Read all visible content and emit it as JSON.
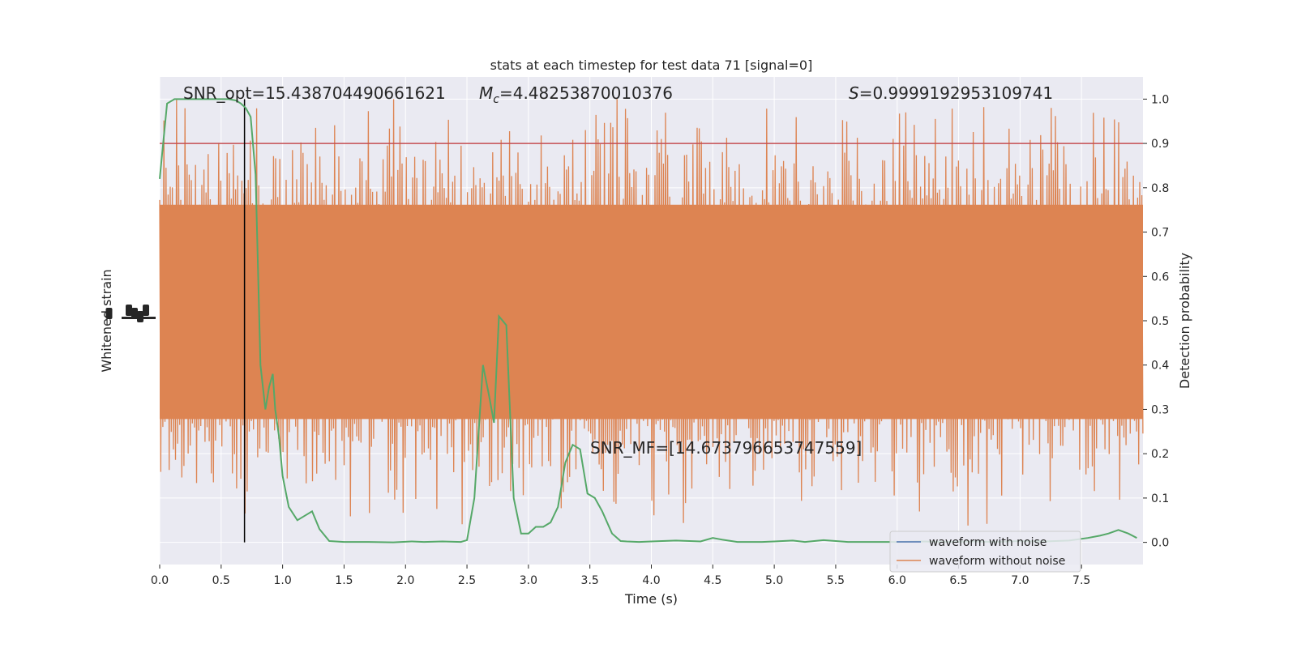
{
  "chart_data": {
    "type": "line",
    "title": "stats at each timestep for test data 71 [signal=0]",
    "xlabel": "Time (s)",
    "ylabel_left": "Whitened strain",
    "ylabel_right": "Detection probability",
    "xlim": [
      0.0,
      8.0
    ],
    "ylim_right": [
      -0.05,
      1.05
    ],
    "x_ticks": [
      "0.0",
      "0.5",
      "1.0",
      "1.5",
      "2.0",
      "2.5",
      "3.0",
      "3.5",
      "4.0",
      "4.5",
      "5.0",
      "5.5",
      "6.0",
      "6.5",
      "7.0",
      "7.5"
    ],
    "y_right_ticks": [
      "0.0",
      "0.1",
      "0.2",
      "0.3",
      "0.4",
      "0.5",
      "0.6",
      "0.7",
      "0.8",
      "0.9",
      "1.0"
    ],
    "grid": true,
    "threshold": 0.9,
    "marker_time": 0.69,
    "annotations": {
      "snr_opt": "SNR_opt=15.438704490661621",
      "mc": "=4.48253870010376",
      "mc_symbol": "M",
      "mc_sub": "c",
      "s": "=0.9999192953109741",
      "s_symbol": "S",
      "snr_mf": "SNR_MF=[14.673796653747559]"
    },
    "legend": {
      "placement": "lower-right",
      "entries": [
        "waveform with noise",
        "waveform without noise"
      ]
    },
    "series": [
      {
        "name": "waveform with noise",
        "color": "#4c72b0",
        "kind": "strain"
      },
      {
        "name": "waveform without noise",
        "color": "#dd8452",
        "kind": "strain",
        "envelope": {
          "core_low": 0.26,
          "core_high": 0.78,
          "spike_low": 0.0,
          "spike_high": 1.0
        }
      },
      {
        "color": "#55a868",
        "kind": "probability",
        "x": [
          0.0,
          0.06,
          0.12,
          0.2,
          0.3,
          0.4,
          0.5,
          0.56,
          0.62,
          0.66,
          0.7,
          0.74,
          0.78,
          0.82,
          0.86,
          0.89,
          0.92,
          0.94,
          0.97,
          1.0,
          1.05,
          1.12,
          1.18,
          1.24,
          1.3,
          1.38,
          1.5,
          1.7,
          1.9,
          2.05,
          2.15,
          2.3,
          2.45,
          2.5,
          2.56,
          2.63,
          2.68,
          2.72,
          2.76,
          2.82,
          2.88,
          2.94,
          3.0,
          3.06,
          3.12,
          3.18,
          3.24,
          3.3,
          3.36,
          3.42,
          3.48,
          3.54,
          3.6,
          3.68,
          3.75,
          3.8,
          3.9,
          4.0,
          4.2,
          4.4,
          4.5,
          4.58,
          4.7,
          4.9,
          5.0,
          5.15,
          5.25,
          5.4,
          5.6,
          5.8,
          6.0,
          6.2,
          6.4,
          6.6,
          6.8,
          7.0,
          7.2,
          7.4,
          7.55,
          7.65,
          7.72,
          7.8,
          7.88,
          7.95
        ],
        "y": [
          0.82,
          0.99,
          1.0,
          1.0,
          1.0,
          1.0,
          1.0,
          1.0,
          0.997,
          0.99,
          0.98,
          0.96,
          0.83,
          0.4,
          0.3,
          0.35,
          0.38,
          0.3,
          0.24,
          0.15,
          0.08,
          0.05,
          0.06,
          0.07,
          0.03,
          0.003,
          0.001,
          0.001,
          0.0,
          0.002,
          0.001,
          0.002,
          0.001,
          0.005,
          0.1,
          0.4,
          0.33,
          0.27,
          0.51,
          0.49,
          0.1,
          0.02,
          0.02,
          0.035,
          0.035,
          0.045,
          0.08,
          0.18,
          0.22,
          0.21,
          0.11,
          0.1,
          0.07,
          0.02,
          0.003,
          0.002,
          0.001,
          0.002,
          0.004,
          0.002,
          0.01,
          0.006,
          0.001,
          0.001,
          0.002,
          0.004,
          0.001,
          0.005,
          0.001,
          0.001,
          0.001,
          0.002,
          0.001,
          0.002,
          0.001,
          0.003,
          0.002,
          0.004,
          0.01,
          0.015,
          0.02,
          0.028,
          0.02,
          0.01
        ]
      }
    ]
  }
}
